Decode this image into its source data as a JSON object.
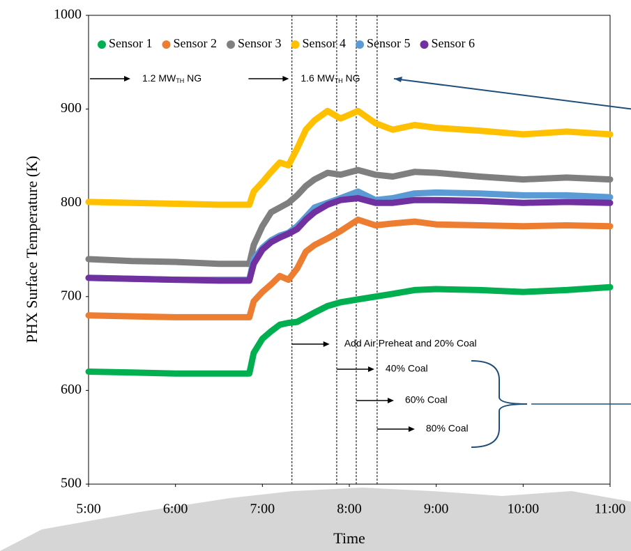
{
  "chart_data": {
    "type": "line",
    "ylabel": "PHX Surface Temperature (K)",
    "xlabel": "Time",
    "xlim": [
      5,
      11
    ],
    "xticks": [
      {
        "value": 5,
        "label": "5:00"
      },
      {
        "value": 6,
        "label": "6:00"
      },
      {
        "value": 7,
        "label": "7:00"
      },
      {
        "value": 8,
        "label": "8:00"
      },
      {
        "value": 9,
        "label": "9:00"
      },
      {
        "value": 10,
        "label": "10:00"
      },
      {
        "value": 11,
        "label": "11:00"
      }
    ],
    "ylim": [
      500,
      1000
    ],
    "yticks": [
      500,
      600,
      700,
      800,
      900,
      1000
    ],
    "legend": "top",
    "x": [
      5,
      5.5,
      6,
      6.5,
      6.85,
      6.9,
      7.0,
      7.1,
      7.2,
      7.3,
      7.4,
      7.5,
      7.6,
      7.75,
      7.9,
      8.1,
      8.3,
      8.5,
      8.75,
      9,
      9.5,
      10,
      10.5,
      11
    ],
    "series": [
      {
        "name": "Sensor 1",
        "color": "#00b050",
        "values": [
          620,
          619,
          618,
          618,
          618,
          640,
          655,
          663,
          670,
          672,
          673,
          678,
          683,
          690,
          694,
          697,
          700,
          703,
          707,
          708,
          707,
          705,
          707,
          710
        ]
      },
      {
        "name": "Sensor 2",
        "color": "#ed7d31",
        "values": [
          680,
          679,
          678,
          678,
          678,
          695,
          705,
          713,
          722,
          718,
          730,
          748,
          755,
          762,
          770,
          782,
          776,
          778,
          780,
          777,
          776,
          775,
          776,
          775
        ]
      },
      {
        "name": "Sensor 3",
        "color": "#7f7f7f",
        "values": [
          740,
          738,
          737,
          735,
          735,
          755,
          775,
          790,
          795,
          800,
          808,
          818,
          825,
          832,
          830,
          835,
          830,
          828,
          833,
          832,
          828,
          825,
          827,
          825
        ]
      },
      {
        "name": "Sensor 4",
        "color": "#ffc000",
        "values": [
          801,
          800,
          799,
          798,
          798,
          812,
          822,
          833,
          843,
          840,
          858,
          878,
          888,
          898,
          890,
          898,
          885,
          878,
          883,
          880,
          877,
          873,
          876,
          873
        ]
      },
      {
        "name": "Sensor 5",
        "color": "#5b9bd5",
        "values": [
          720,
          719,
          718,
          718,
          718,
          740,
          752,
          760,
          765,
          768,
          775,
          785,
          795,
          800,
          805,
          812,
          803,
          805,
          810,
          811,
          810,
          808,
          808,
          806
        ]
      },
      {
        "name": "Sensor 6",
        "color": "#7030a0",
        "values": [
          720,
          719,
          718,
          717,
          717,
          735,
          750,
          758,
          763,
          767,
          772,
          782,
          790,
          798,
          803,
          805,
          800,
          800,
          803,
          803,
          802,
          800,
          801,
          800
        ]
      }
    ],
    "fuel_annotations": [
      {
        "x": 5,
        "text": "1.2 MW",
        "sub": "TH",
        "suffix": " NG"
      },
      {
        "x": 6.84,
        "text": "1.6 MW",
        "sub": "TH",
        "suffix": " NG"
      }
    ],
    "events": [
      {
        "x": 7.34,
        "label": "Add Air Preheat and 20% Coal"
      },
      {
        "x": 7.855,
        "label": "40% Coal"
      },
      {
        "x": 8.08,
        "label": "60% Coal"
      },
      {
        "x": 8.32,
        "label": "80% Coal"
      }
    ]
  }
}
